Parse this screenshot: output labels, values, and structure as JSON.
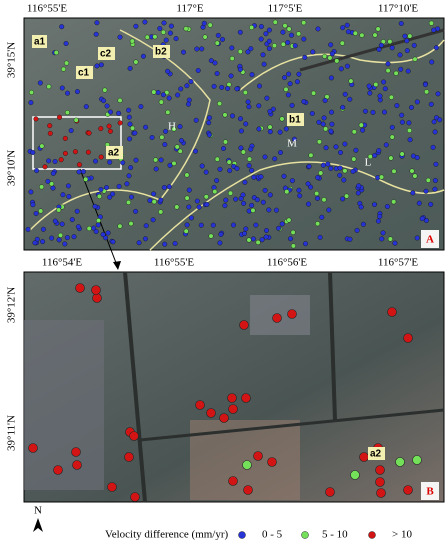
{
  "panel_a": {
    "lon_labels": [
      "116°55'E",
      "117°E",
      "117°5'E",
      "117°10'E"
    ],
    "lat_labels": [
      "39°15'N",
      "39°10'N"
    ],
    "site_labels": [
      "a1",
      "c2",
      "b2",
      "c1",
      "a2",
      "b1"
    ],
    "zone_labels": [
      "H",
      "M",
      "L"
    ],
    "panel_label": "A"
  },
  "panel_b": {
    "lon_labels": [
      "116°54'E",
      "116°55'E",
      "116°56'E",
      "116°57'E"
    ],
    "lat_labels": [
      "39°12'N",
      "39°11'N"
    ],
    "site_labels": [
      "a2"
    ],
    "panel_label": "B"
  },
  "legend": {
    "north": "N",
    "title": "Velocity difference (mm/yr)",
    "classes": [
      {
        "label": "0 - 5",
        "color": "#2633d6"
      },
      {
        "label": "5 - 10",
        "color": "#74e05a"
      },
      {
        "label": "> 10",
        "color": "#d31414"
      }
    ]
  }
}
